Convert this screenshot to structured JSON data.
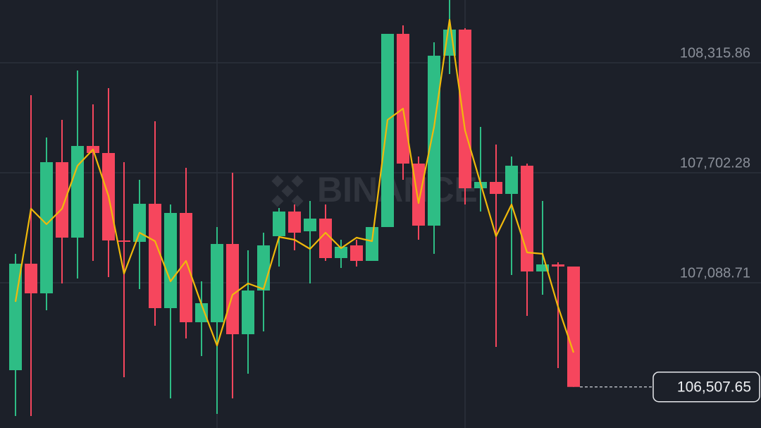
{
  "chart_data": {
    "type": "candlestick",
    "watermark": "BINANCE",
    "up_color": "#2ebd85",
    "down_color": "#f6465d",
    "ylim": [
      106278.5,
      108665.91
    ],
    "yticks": [
      {
        "value": 108315.86,
        "label": "108,315.86"
      },
      {
        "value": 107702.28,
        "label": "107,702.28"
      },
      {
        "value": 107088.71,
        "label": "107,088.71"
      }
    ],
    "grid": true,
    "open": [
      106600.98,
      107194.9,
      107029.7,
      107761.28,
      107340.43,
      107851.74,
      107812.41,
      107324.69,
      107316.83,
      107529.22,
      106947.11,
      107478.09,
      106868.44,
      106868.44,
      107305.03,
      106801.58,
      107045.44,
      107348.29,
      107485.95,
      107375.83,
      107446.62,
      107226.36,
      107297.16,
      107210.63,
      107399.42,
      108477.12,
      107753.41,
      107407.29,
      108355.19,
      108500.72,
      107615.75,
      107651.15,
      107584.28,
      107741.61,
      107151.63,
      107190.96,
      107179.17
    ],
    "high": [
      107249.96,
      108134.93,
      107898.94,
      107997.27,
      108272.59,
      108083.8,
      108174.26,
      107761.28,
      107662.95,
      107989.4,
      107525.29,
      107729.81,
      107096.57,
      107399.42,
      107702.28,
      107269.63,
      107367.96,
      107505.62,
      107525.29,
      107544.95,
      107525.29,
      107328.63,
      107328.63,
      107399.42,
      108477.12,
      108524.32,
      107792.74,
      108429.92,
      108665.91,
      108508.59,
      107957.94,
      107859.61,
      107792.74,
      107753.41,
      107544.95,
      107202.76,
      107179.17
    ],
    "low": [
      106345.33,
      106345.33,
      106935.31,
      107084.77,
      107112.3,
      107210.63,
      107120.17,
      106561.65,
      107053.3,
      106848.78,
      106443.66,
      106777.98,
      106679.65,
      106357.13,
      106443.66,
      106581.32,
      106817.31,
      107179.17,
      107269.63,
      107084.77,
      107210.63,
      107171.3,
      107179.17,
      107210.63,
      107399.42,
      107662.95,
      107328.63,
      107249.96,
      108252.93,
      107525.29,
      107485.95,
      106730.78,
      107131.97,
      106903.84,
      107021.84,
      106612.78,
      106507.65
    ],
    "close": [
      107194.9,
      107029.7,
      107761.28,
      107340.43,
      107851.74,
      107812.41,
      107324.69,
      107316.83,
      107529.22,
      106947.11,
      107478.09,
      106868.44,
      106974.64,
      107305.03,
      106801.58,
      107045.44,
      107297.16,
      107485.95,
      107367.96,
      107446.62,
      107226.36,
      107289.29,
      107210.63,
      107399.42,
      108477.12,
      107753.41,
      107407.29,
      108355.19,
      108500.72,
      107615.75,
      107651.15,
      107584.28,
      107741.61,
      107151.63,
      107190.96,
      107179.17,
      106507.65
    ],
    "ma": {
      "color": "#f0b90b",
      "values": [
        106982.51,
        107501.69,
        107415.16,
        107501.69,
        107741.61,
        107832.08,
        107572.49,
        107139.83,
        107367.96,
        107320.76,
        107096.57,
        107210.63,
        106966.77,
        106738.65,
        107021.84,
        107084.77,
        107053.3,
        107344.36,
        107328.63,
        107277.49,
        107367.96,
        107281.42,
        107340.43,
        107320.76,
        107997.27,
        108060.2,
        107533.15,
        107957.94,
        108555.79,
        107938.27,
        107643.28,
        107348.29,
        107525.29,
        107257.83,
        107249.96,
        106954.97,
        106699.31
      ]
    },
    "last_price": {
      "value": 106507.65,
      "label": "106,507.65"
    }
  }
}
